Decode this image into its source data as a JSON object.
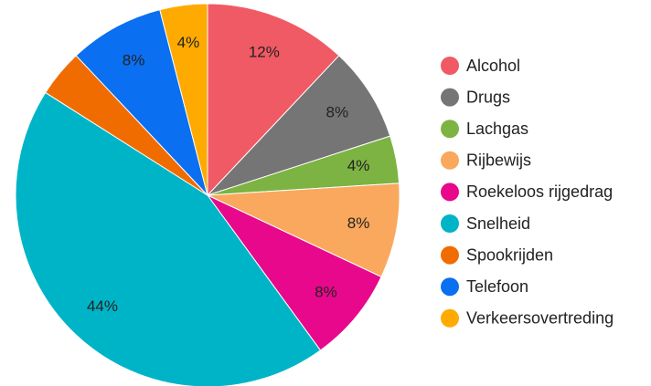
{
  "chart_data": {
    "type": "pie",
    "categories": [
      "Alcohol",
      "Drugs",
      "Lachgas",
      "Rijbewijs",
      "Roekeloos rijgedrag",
      "Snelheid",
      "Spookrijden",
      "Telefoon",
      "Verkeersovertreding"
    ],
    "values": [
      12,
      8,
      4,
      8,
      8,
      44,
      4,
      8,
      4
    ],
    "value_labels": [
      "12%",
      "8%",
      "4%",
      "8%",
      "8%",
      "44%",
      null,
      "8%",
      "4%"
    ],
    "colors": [
      "#f05a64",
      "#757575",
      "#7cb342",
      "#f9a85d",
      "#e8088b",
      "#00b4c8",
      "#f06c00",
      "#0a6ff0",
      "#ffaa00"
    ],
    "legend": "right"
  }
}
